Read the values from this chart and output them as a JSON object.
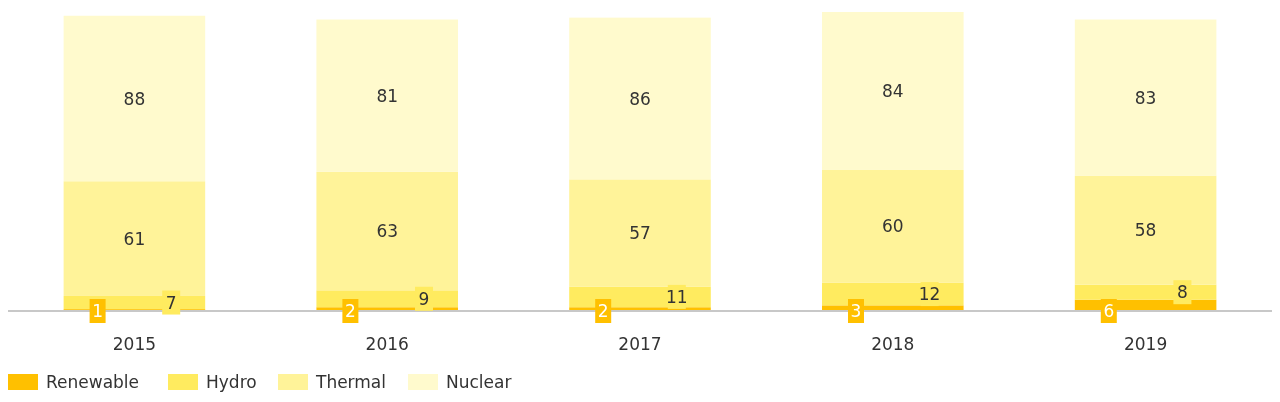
{
  "chart_data": {
    "type": "bar",
    "stacked": true,
    "data_labels": true,
    "legend": "bottom left",
    "categories": [
      "2015",
      "2016",
      "2017",
      "2018",
      "2019"
    ],
    "series": [
      {
        "name": "Renewable",
        "color": "#ffc000",
        "values": [
          1,
          2,
          2,
          3,
          6
        ]
      },
      {
        "name": "Hydro",
        "color": "#ffeb5f",
        "values": [
          7,
          9,
          11,
          12,
          8
        ]
      },
      {
        "name": "Thermal",
        "color": "#fff399",
        "values": [
          61,
          63,
          57,
          60,
          58
        ]
      },
      {
        "name": "Nuclear",
        "color": "#fffacd",
        "values": [
          88,
          81,
          86,
          84,
          83
        ]
      }
    ]
  }
}
